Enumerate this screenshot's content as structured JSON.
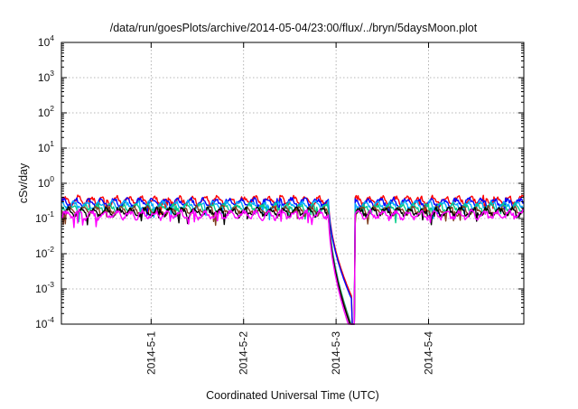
{
  "chart_data": {
    "type": "line",
    "title": "/data/run/goesPlots/archive/2014-05-04/23:00/flux/../bryn/5daysMoon.plot",
    "xlabel": "Coordinated Universal Time (UTC)",
    "ylabel": "cSv/day",
    "x_range_days": [
      -0.97,
      4.03
    ],
    "x_ticks": [
      {
        "day": 0,
        "label": "2014-5-1"
      },
      {
        "day": 1,
        "label": "2014-5-2"
      },
      {
        "day": 2,
        "label": "2014-5-3"
      },
      {
        "day": 3,
        "label": "2014-5-4"
      }
    ],
    "y_scale": "log",
    "ylim": [
      0.0001,
      10000
    ],
    "y_ticks": [
      {
        "value": 0.0001,
        "base": "10",
        "exp": "-4"
      },
      {
        "value": 0.001,
        "base": "10",
        "exp": "-3"
      },
      {
        "value": 0.01,
        "base": "10",
        "exp": "-2"
      },
      {
        "value": 0.1,
        "base": "10",
        "exp": "-1"
      },
      {
        "value": 1,
        "base": "10",
        "exp": "0"
      },
      {
        "value": 10,
        "base": "10",
        "exp": "1"
      },
      {
        "value": 100,
        "base": "10",
        "exp": "2"
      },
      {
        "value": 1000,
        "base": "10",
        "exp": "3"
      },
      {
        "value": 10000,
        "base": "10",
        "exp": "4"
      }
    ],
    "grid": true,
    "series_colors": [
      "#ff0000",
      "#0000ff",
      "#00aaff",
      "#00cc88",
      "#804020",
      "#000000",
      "#ff00ff"
    ],
    "series_baselines": [
      0.33,
      0.29,
      0.24,
      0.2,
      0.17,
      0.155,
      0.13
    ],
    "drop": {
      "start_day": 1.92,
      "end_day": 2.2,
      "min_values": [
        0.0006,
        0.0005,
        8e-05,
        9e-05,
        8e-05,
        7e-05,
        5e-05
      ]
    }
  }
}
